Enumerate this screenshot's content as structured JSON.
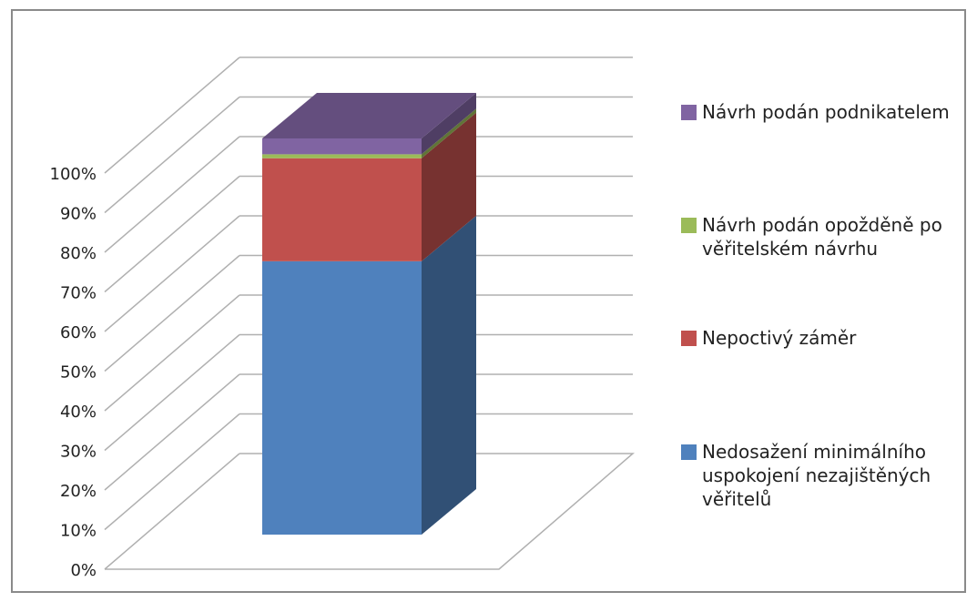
{
  "chart_data": {
    "type": "bar",
    "stacked": true,
    "three_d": true,
    "title": "",
    "xlabel": "",
    "ylabel": "",
    "ylim": [
      0,
      1
    ],
    "yticks": [
      "0%",
      "10%",
      "20%",
      "30%",
      "40%",
      "50%",
      "60%",
      "70%",
      "80%",
      "90%",
      "100%"
    ],
    "grid": true,
    "legend_position": "right",
    "categories": [
      ""
    ],
    "series": [
      {
        "name": "Nedosažení minimálního uspokojení nezajištěných věřitelů",
        "values": [
          0.69
        ],
        "color": "#4f81bd"
      },
      {
        "name": "Nepoctivý záměr",
        "values": [
          0.26
        ],
        "color": "#c0504d"
      },
      {
        "name": "Návrh podán opožděně po věřitelském návrhu",
        "values": [
          0.01
        ],
        "color": "#9bbb59"
      },
      {
        "name": "Návrh podán podnikatelem",
        "values": [
          0.04
        ],
        "color": "#8064a2"
      }
    ]
  }
}
